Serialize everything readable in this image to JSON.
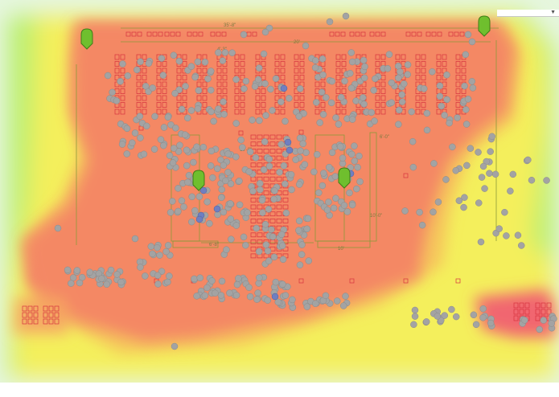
{
  "map": {
    "dimension_labels": [
      "35'-8\"",
      "20'",
      "4'-3\"",
      "10'-0\"",
      "6'-0\"",
      "10'-0\"",
      "6'-8\"",
      "10'"
    ],
    "legend": {
      "heat_colors": [
        "#f1666f",
        "#f6f05a",
        "#b7ef6c",
        "#e8f7e3"
      ],
      "device_color": "#a3a3a3",
      "beacon_color": "#6f7fc1",
      "marker_color": "#6fbf2e",
      "seat_color": "#d6323f",
      "plan_line_color": "#8a9a3a"
    },
    "markers": [
      {
        "name": "marker-top-left"
      },
      {
        "name": "marker-top-right"
      },
      {
        "name": "marker-center-left"
      },
      {
        "name": "marker-center-right"
      }
    ]
  },
  "toolbar": {
    "dropdown_caret": "▼"
  }
}
